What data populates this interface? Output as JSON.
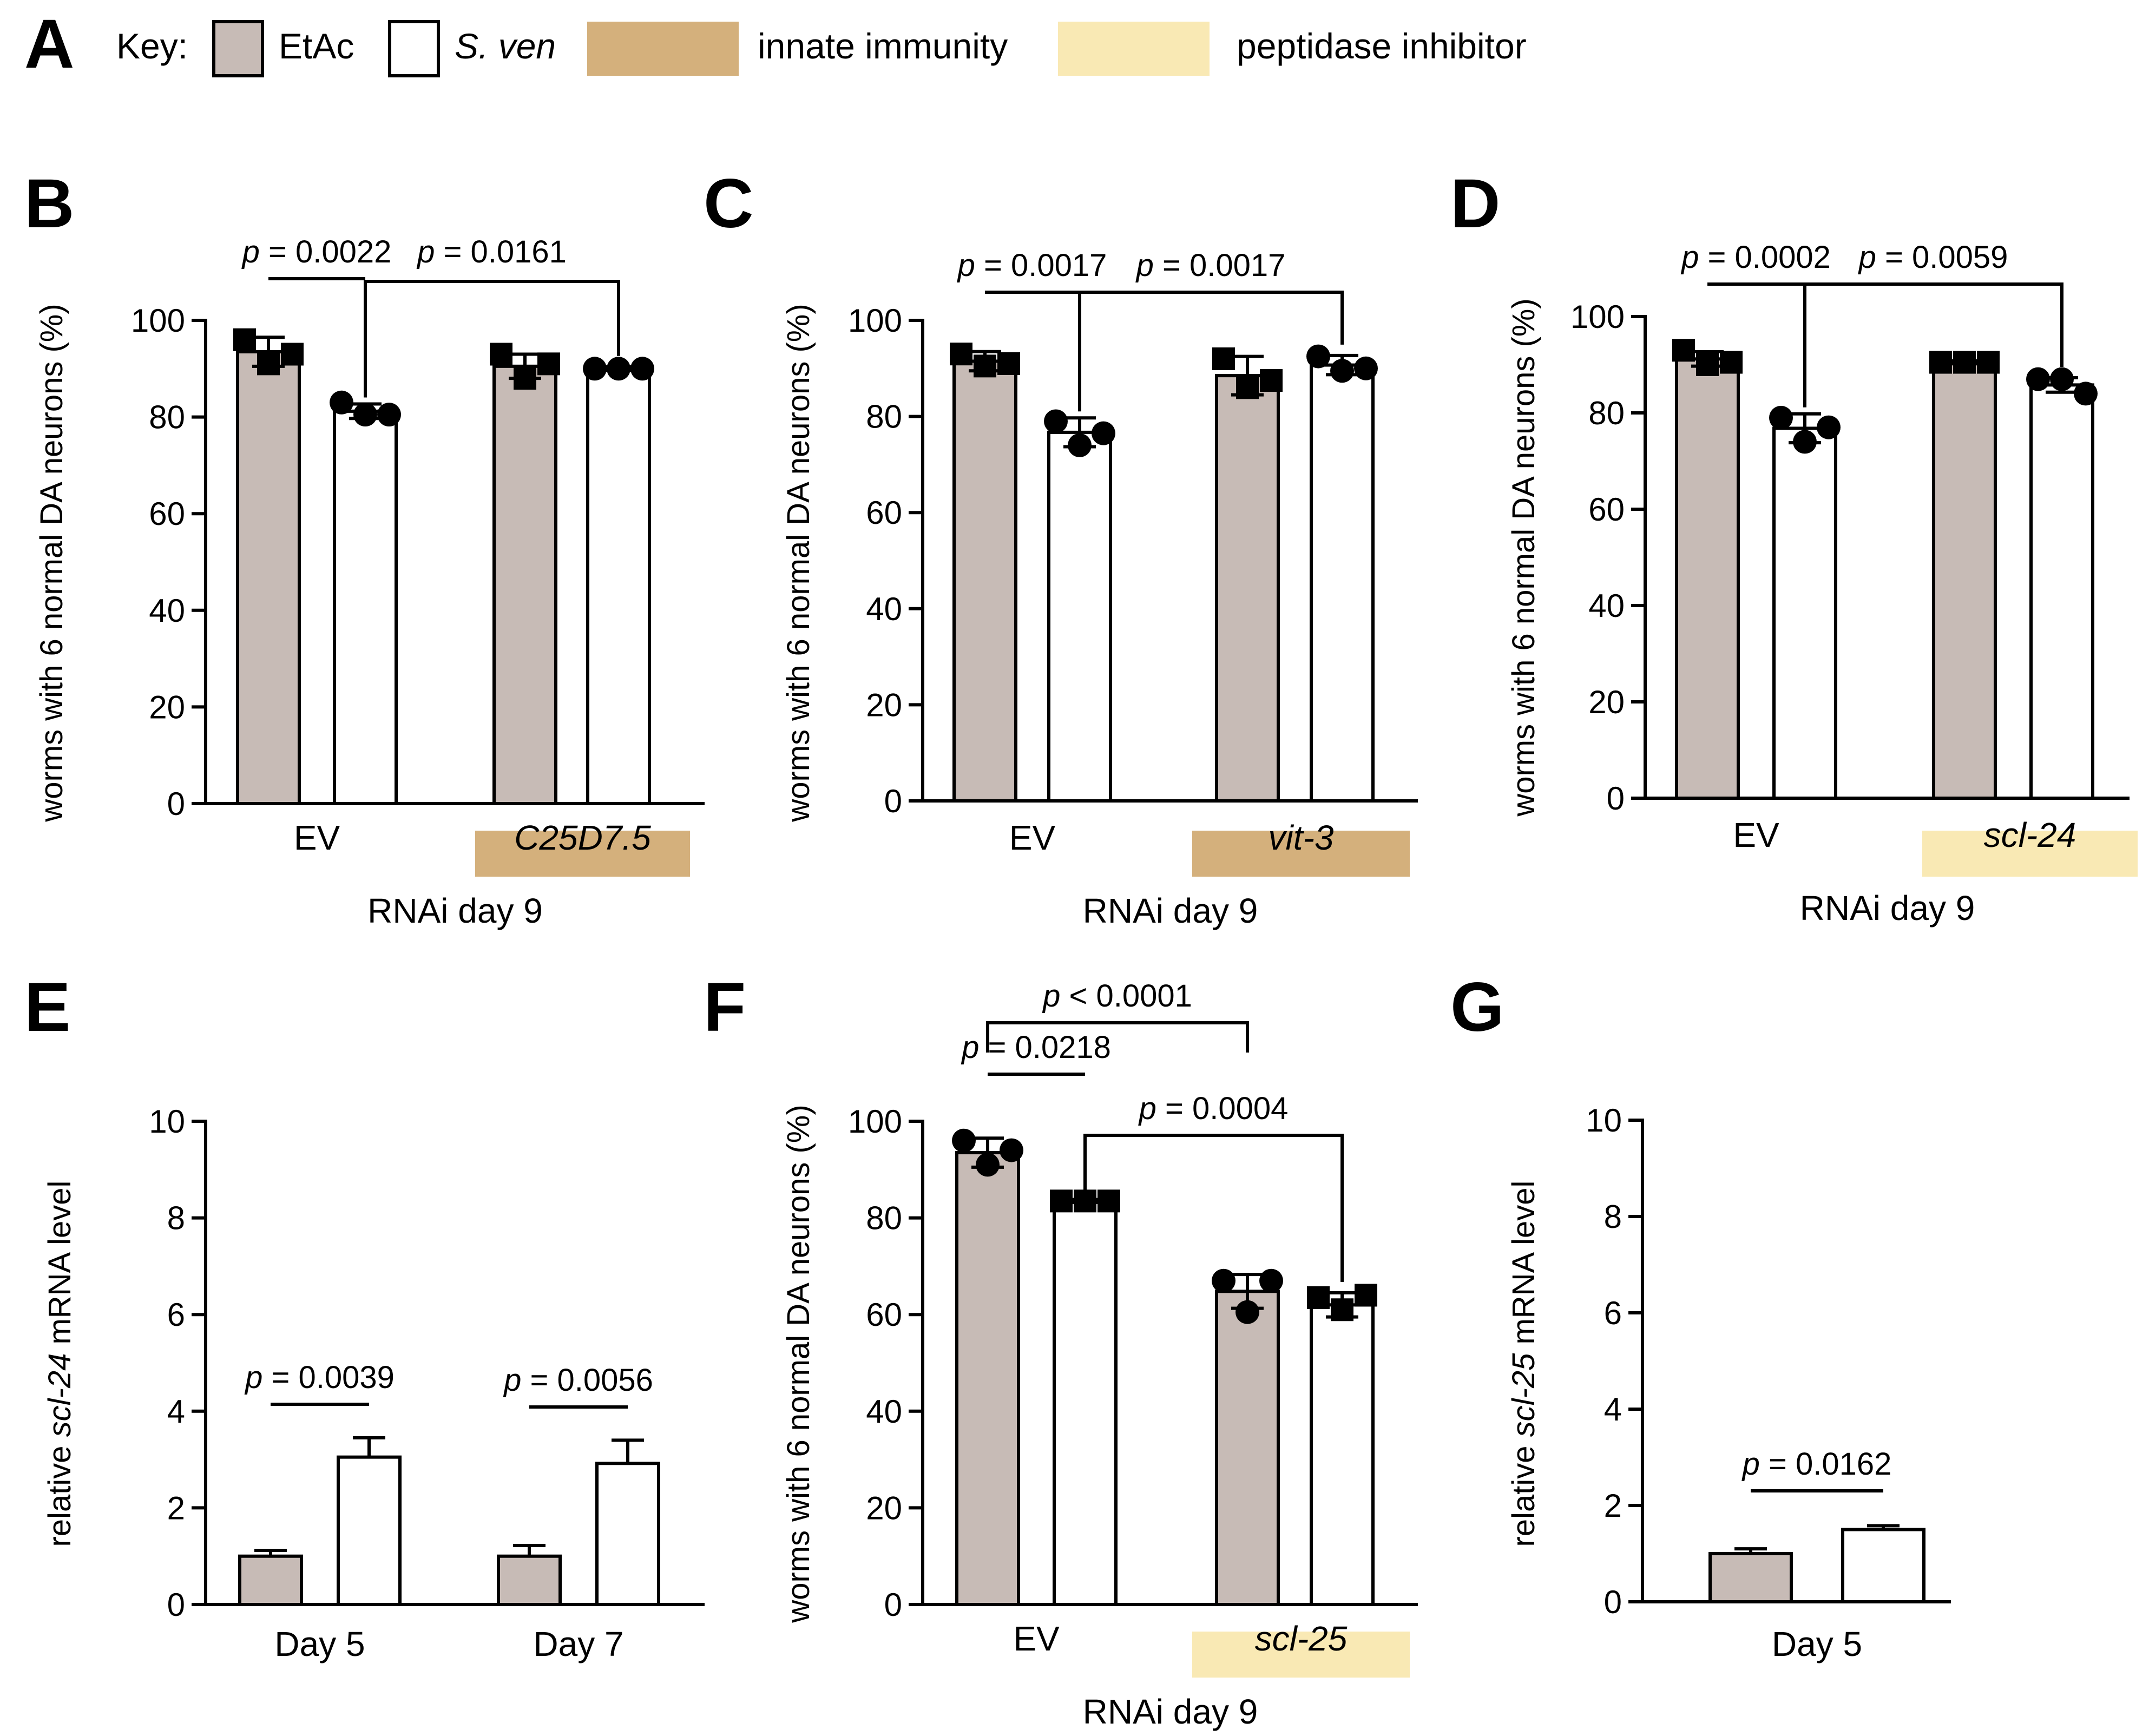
{
  "key": {
    "panel_letter": "A",
    "label": "Key:",
    "items": [
      {
        "type": "bar",
        "label": "EtAc",
        "italic": false,
        "color": "#c7bbb6"
      },
      {
        "type": "bar",
        "label": "S. ven",
        "italic": true,
        "color": "#ffffff"
      },
      {
        "type": "band",
        "label": "innate immunity",
        "italic": false,
        "color": "#d4b07c"
      },
      {
        "type": "band",
        "label": "peptidase inhibitor",
        "italic": false,
        "color": "#f9e9b4"
      }
    ]
  },
  "colors": {
    "etac": "#c7bbb6",
    "sven": "#ffffff",
    "innate_immunity": "#d4b07c",
    "peptidase_inhibitor": "#f9e9b4",
    "ink": "#000000"
  },
  "chart_data": [
    {
      "panel": "B",
      "type": "bar",
      "ylabel": "worms with 6 normal DA neurons (%)",
      "ylabel_italic_part": "",
      "xlabel": "RNAi day 9",
      "ylim": [
        0,
        100
      ],
      "yticks": [
        0,
        20,
        40,
        60,
        80,
        100
      ],
      "groups": [
        {
          "label": "EV",
          "italic": false,
          "band": null
        },
        {
          "label": "C25D7.5",
          "italic": true,
          "band": "innate_immunity"
        }
      ],
      "series": [
        {
          "name": "EtAc",
          "values": [
            93.5,
            90.5
          ],
          "errors": [
            3.0,
            2.5
          ],
          "marker": "square",
          "points": [
            [
              96,
              91,
              93
            ],
            [
              93,
              88,
              91
            ]
          ]
        },
        {
          "name": "S. ven",
          "values": [
            81.2,
            90.0
          ],
          "errors": [
            1.5,
            0.4
          ],
          "marker": "circle",
          "points": [
            [
              83,
              80.5,
              80.5
            ],
            [
              90,
              90,
              90
            ]
          ]
        }
      ],
      "comparisons": [
        {
          "from": [
            0,
            0
          ],
          "to": [
            0,
            1
          ],
          "label": "p = 0.0022",
          "style": "flat"
        },
        {
          "from": [
            0,
            1
          ],
          "to": [
            1,
            1
          ],
          "label": "p = 0.0161",
          "style": "bracket"
        }
      ]
    },
    {
      "panel": "C",
      "type": "bar",
      "ylabel": "worms with 6 normal DA neurons (%)",
      "ylabel_italic_part": "",
      "xlabel": "RNAi day 9",
      "ylim": [
        0,
        100
      ],
      "yticks": [
        0,
        20,
        40,
        60,
        80,
        100
      ],
      "groups": [
        {
          "label": "EV",
          "italic": false,
          "band": null
        },
        {
          "label": "vit-3",
          "italic": true,
          "band": "innate_immunity"
        }
      ],
      "series": [
        {
          "name": "EtAc",
          "values": [
            91.5,
            88.5
          ],
          "errors": [
            2.0,
            4.0
          ],
          "marker": "square",
          "points": [
            [
              93,
              90.5,
              91
            ],
            [
              92,
              86,
              87.5
            ]
          ]
        },
        {
          "name": "S. ven",
          "values": [
            76.7,
            90.7
          ],
          "errors": [
            3.0,
            2.0
          ],
          "marker": "circle",
          "points": [
            [
              79,
              74,
              76.5
            ],
            [
              92.5,
              89.5,
              90
            ]
          ]
        }
      ],
      "comparisons": [
        {
          "from": [
            0,
            0
          ],
          "to": [
            0,
            1
          ],
          "label": "p = 0.0017",
          "style": "flat"
        },
        {
          "from": [
            0,
            1
          ],
          "to": [
            1,
            1
          ],
          "label": "p = 0.0017",
          "style": "bracket"
        }
      ]
    },
    {
      "panel": "D",
      "type": "bar",
      "ylabel": "worms with 6 normal DA neurons (%)",
      "ylabel_italic_part": "",
      "xlabel": "RNAi day 9",
      "ylim": [
        0,
        100
      ],
      "yticks": [
        0,
        20,
        40,
        60,
        80,
        100
      ],
      "groups": [
        {
          "label": "EV",
          "italic": false,
          "band": null
        },
        {
          "label": "scl-24",
          "italic": true,
          "band": "peptidase_inhibitor"
        }
      ],
      "series": [
        {
          "name": "EtAc",
          "values": [
            91.2,
            90.5
          ],
          "errors": [
            1.5,
            0.3
          ],
          "marker": "square",
          "points": [
            [
              93,
              90,
              90.5
            ],
            [
              90.5,
              90.5,
              90.5
            ]
          ]
        },
        {
          "name": "S. ven",
          "values": [
            76.8,
            85.8
          ],
          "errors": [
            3.0,
            1.5
          ],
          "marker": "circle",
          "points": [
            [
              79,
              74,
              77
            ],
            [
              87,
              87,
              84
            ]
          ]
        }
      ],
      "comparisons": [
        {
          "from": [
            0,
            0
          ],
          "to": [
            0,
            1
          ],
          "label": "p = 0.0002",
          "style": "flat"
        },
        {
          "from": [
            0,
            1
          ],
          "to": [
            1,
            1
          ],
          "label": "p = 0.0059",
          "style": "bracket"
        }
      ]
    },
    {
      "panel": "E",
      "type": "bar",
      "ylabel": "relative scl-24 mRNA level",
      "ylabel_prefix": "relative ",
      "ylabel_italic_part": "scl-24",
      "ylabel_suffix": " mRNA level",
      "xlabel": "",
      "ylim": [
        0,
        10
      ],
      "yticks": [
        0,
        2,
        4,
        6,
        8,
        10
      ],
      "groups": [
        {
          "label": "Day 5",
          "italic": false,
          "band": null
        },
        {
          "label": "Day 7",
          "italic": false,
          "band": null
        }
      ],
      "series": [
        {
          "name": "EtAc",
          "values": [
            1.0,
            1.0
          ],
          "errors": [
            0.12,
            0.22
          ],
          "marker": "none",
          "points": []
        },
        {
          "name": "S. ven",
          "values": [
            3.05,
            2.92
          ],
          "errors": [
            0.4,
            0.48
          ],
          "marker": "none",
          "points": []
        }
      ],
      "comparisons": [
        {
          "from": [
            0,
            0
          ],
          "to": [
            0,
            1
          ],
          "label": "p = 0.0039",
          "style": "flat"
        },
        {
          "from": [
            1,
            0
          ],
          "to": [
            1,
            1
          ],
          "label": "p = 0.0056",
          "style": "flat"
        }
      ]
    },
    {
      "panel": "F",
      "type": "bar",
      "ylabel": "worms with 6 normal DA neurons (%)",
      "ylabel_italic_part": "",
      "xlabel": "RNAi day 9",
      "ylim": [
        0,
        100
      ],
      "yticks": [
        0,
        20,
        40,
        60,
        80,
        100
      ],
      "groups": [
        {
          "label": "EV",
          "italic": false,
          "band": null
        },
        {
          "label": "scl-25",
          "italic": true,
          "band": "peptidase_inhibitor"
        }
      ],
      "series": [
        {
          "name": "EtAc",
          "values": [
            93.5,
            64.8
          ],
          "errors": [
            3.0,
            3.5
          ],
          "marker": "circle",
          "points": [
            [
              96,
              91,
              94
            ],
            [
              67,
              60.5,
              67
            ]
          ]
        },
        {
          "name": "S. ven",
          "values": [
            83.5,
            62.0
          ],
          "errors": [
            0.3,
            2.5
          ],
          "marker": "square",
          "points": [
            [
              83.5,
              83.5,
              83.5
            ],
            [
              63.5,
              61,
              64
            ]
          ]
        }
      ],
      "comparisons": [
        {
          "from": [
            0,
            0
          ],
          "to": [
            1,
            0
          ],
          "label": "p < 0.0001",
          "style": "bracket-top"
        },
        {
          "from": [
            0,
            0
          ],
          "to": [
            0,
            1
          ],
          "label": "p = 0.0218",
          "style": "flat"
        },
        {
          "from": [
            0,
            1
          ],
          "to": [
            1,
            1
          ],
          "label": "p = 0.0004",
          "style": "bracket"
        }
      ]
    },
    {
      "panel": "G",
      "type": "bar",
      "ylabel": "relative scl-25 mRNA level",
      "ylabel_prefix": "relative ",
      "ylabel_italic_part": "scl-25",
      "ylabel_suffix": " mRNA level",
      "xlabel": "",
      "ylim": [
        0,
        10
      ],
      "yticks": [
        0,
        2,
        4,
        6,
        8,
        10
      ],
      "groups": [
        {
          "label": "Day 5",
          "italic": false,
          "band": null
        }
      ],
      "series": [
        {
          "name": "EtAc",
          "values": [
            1.0
          ],
          "errors": [
            0.1
          ],
          "marker": "none",
          "points": []
        },
        {
          "name": "S. ven",
          "values": [
            1.5
          ],
          "errors": [
            0.08
          ],
          "marker": "none",
          "points": []
        }
      ],
      "comparisons": [
        {
          "from": [
            0,
            0
          ],
          "to": [
            0,
            1
          ],
          "label": "p = 0.0162",
          "style": "flat"
        }
      ]
    }
  ]
}
